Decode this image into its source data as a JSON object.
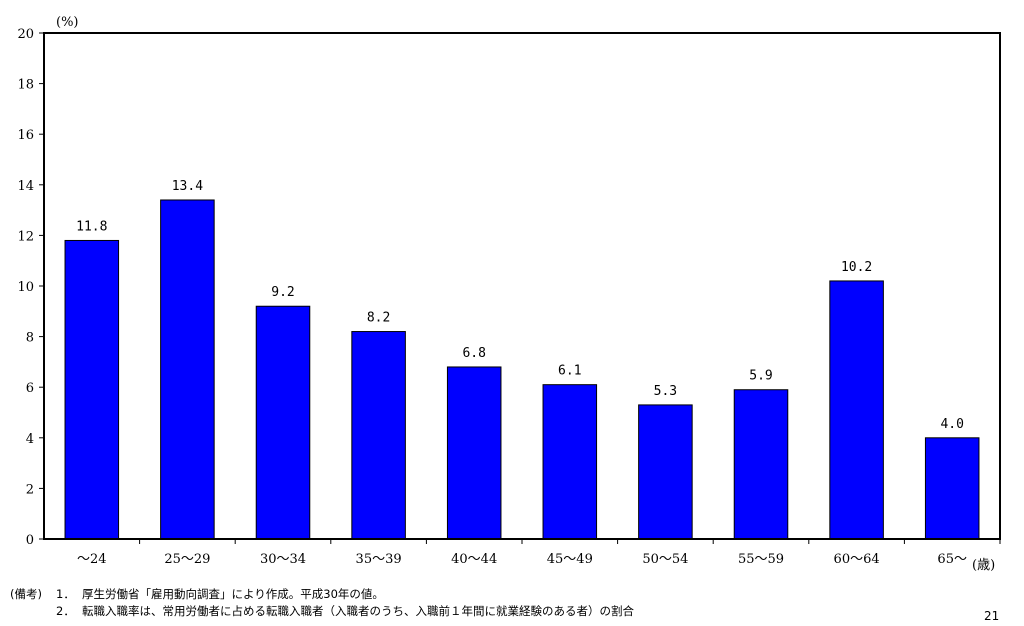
{
  "chart_data": {
    "type": "bar",
    "categories": [
      "～24",
      "25～29",
      "30～34",
      "35～39",
      "40～44",
      "45～49",
      "50～54",
      "55～59",
      "60～64",
      "65～"
    ],
    "values": [
      11.8,
      13.4,
      9.2,
      8.2,
      6.8,
      6.1,
      5.3,
      5.9,
      10.2,
      4.0
    ],
    "data_labels": [
      "11.8",
      "13.4",
      "9.2",
      "8.2",
      "6.8",
      "6.1",
      "5.3",
      "5.9",
      "10.2",
      "4.0"
    ],
    "y_unit": "(%)",
    "x_unit": "(歳)",
    "ylim": [
      0,
      20
    ],
    "yticks": [
      0,
      2,
      4,
      6,
      8,
      10,
      12,
      14,
      16,
      18,
      20
    ],
    "grid": false,
    "bar_color": "#0000ff"
  },
  "notes": {
    "tag": "(備考)",
    "items": [
      {
        "num": "1．",
        "text": "厚生労働省「雇用動向調査」により作成。平成30年の値。"
      },
      {
        "num": "2．",
        "text": "転職入職率は、常用労働者に占める転職入職者（入職者のうち、入職前１年間に就業経験のある者）の割合"
      }
    ]
  },
  "page_number": "21"
}
